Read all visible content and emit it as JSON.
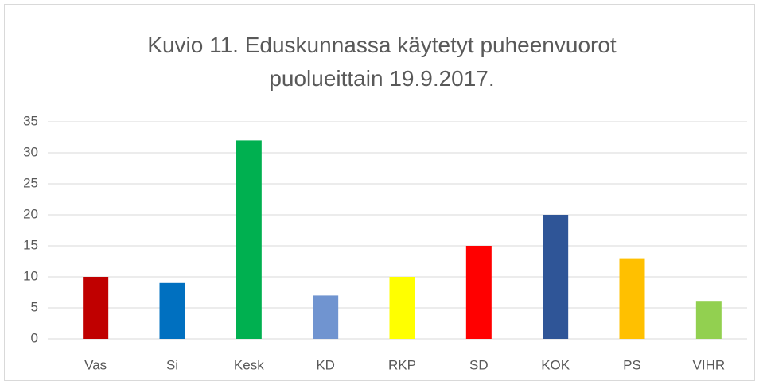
{
  "chart_data": {
    "type": "bar",
    "title": "Kuvio 11. Eduskunnassa käytetyt puheenvuorot puolueittain 19.9.2017.",
    "categories": [
      "Vas",
      "Si",
      "Kesk",
      "KD",
      "RKP",
      "SD",
      "KOK",
      "PS",
      "VIHR"
    ],
    "values": [
      10,
      9,
      32,
      7,
      10,
      15,
      20,
      13,
      6
    ],
    "colors": [
      "#c00000",
      "#0070c0",
      "#00b050",
      "#7094d0",
      "#ffff00",
      "#ff0000",
      "#2f5597",
      "#ffc000",
      "#92d050"
    ],
    "ylim": [
      0,
      35
    ],
    "yticks": [
      0,
      5,
      10,
      15,
      20,
      25,
      30,
      35
    ],
    "grid": true
  }
}
